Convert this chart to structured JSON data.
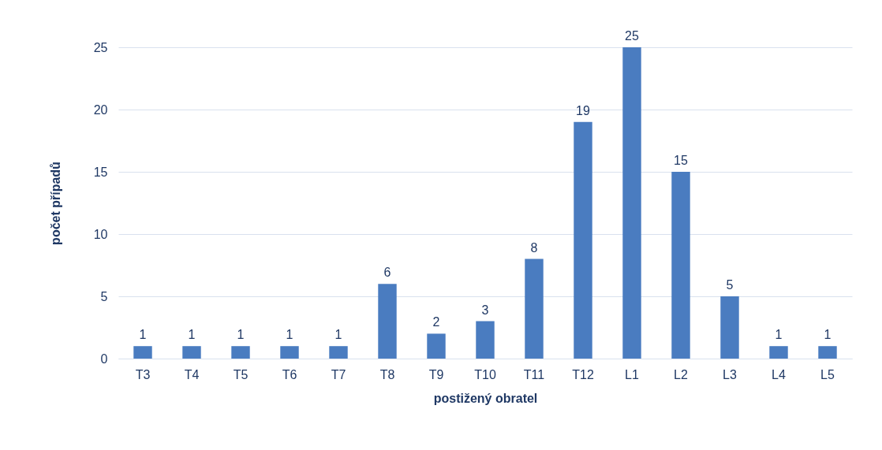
{
  "chart_data": {
    "type": "bar",
    "xlabel": "postižený obratel",
    "ylabel": "počet případů",
    "categories": [
      "T3",
      "T4",
      "T5",
      "T6",
      "T7",
      "T8",
      "T9",
      "T10",
      "T11",
      "T12",
      "L1",
      "L2",
      "L3",
      "L4",
      "L5"
    ],
    "values": [
      1,
      1,
      1,
      1,
      1,
      6,
      2,
      3,
      8,
      19,
      25,
      15,
      5,
      1,
      1
    ],
    "color": "#4a7cc0",
    "ylim": [
      0,
      25
    ],
    "yticks": [
      0,
      5,
      10,
      15,
      20,
      25
    ],
    "grid": "y",
    "data_labels": true
  }
}
